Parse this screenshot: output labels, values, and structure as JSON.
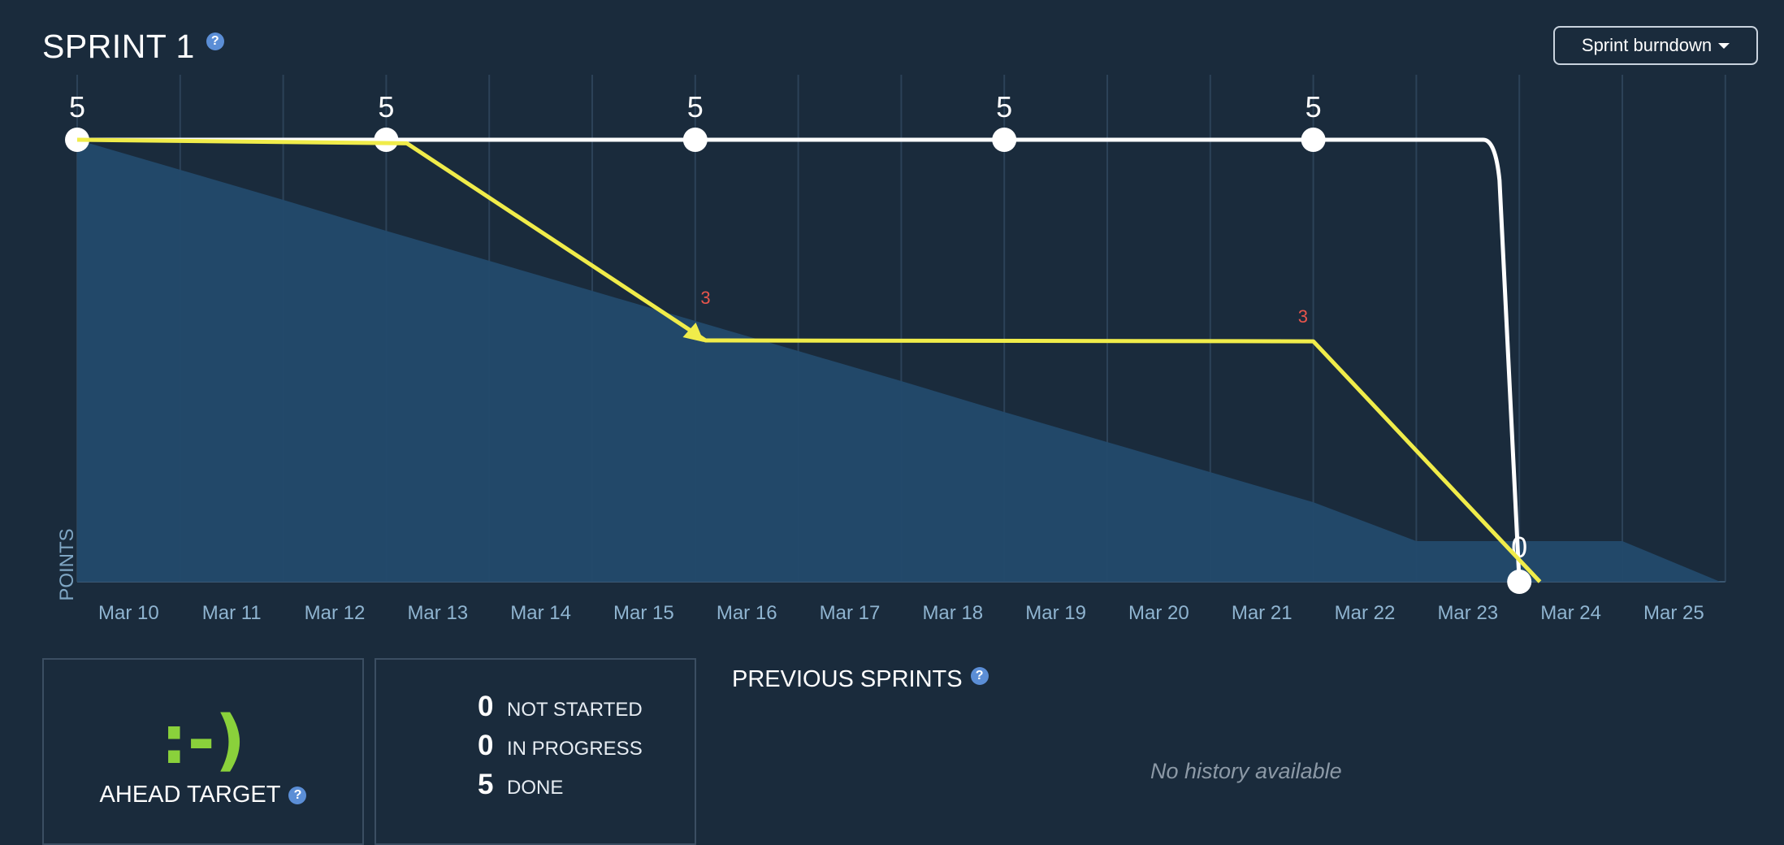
{
  "header": {
    "title": "SPRINT 1",
    "help_glyph": "?",
    "dropdown_label": "Sprint burndown"
  },
  "chart_data": {
    "type": "line",
    "ylabel": "POINTS",
    "x": [
      "Mar 10",
      "Mar 11",
      "Mar 12",
      "Mar 13",
      "Mar 14",
      "Mar 15",
      "Mar 16",
      "Mar 17",
      "Mar 18",
      "Mar 19",
      "Mar 20",
      "Mar 21",
      "Mar 22",
      "Mar 23",
      "Mar 24",
      "Mar 25"
    ],
    "ylim": [
      0,
      5
    ],
    "series": [
      {
        "role": "ideal-area",
        "color": "#234a6b",
        "points": [
          [
            0,
            5
          ],
          [
            1,
            4.66
          ],
          [
            2,
            4.32
          ],
          [
            3,
            3.97
          ],
          [
            4,
            3.63
          ],
          [
            5,
            3.29
          ],
          [
            6,
            2.95
          ],
          [
            7,
            2.61
          ],
          [
            8,
            2.27
          ],
          [
            9,
            1.92
          ],
          [
            10,
            1.58
          ],
          [
            11,
            1.24
          ],
          [
            12,
            0.9
          ],
          [
            13,
            0.46
          ],
          [
            14,
            0.46
          ],
          [
            15,
            0.46
          ],
          [
            15.95,
            0
          ]
        ]
      },
      {
        "role": "scope-line",
        "color": "#ffffff",
        "points": [
          [
            0,
            5
          ],
          [
            3,
            5
          ],
          [
            6,
            5
          ],
          [
            9,
            5
          ],
          [
            12,
            5
          ],
          [
            14,
            0
          ]
        ],
        "labels": [
          "5",
          "5",
          "5",
          "5",
          "5",
          "0"
        ]
      },
      {
        "role": "remaining-line",
        "color": "#f0ec4a",
        "points": [
          [
            0,
            5
          ],
          [
            3.2,
            4.96
          ],
          [
            6.1,
            2.73
          ],
          [
            12,
            2.72
          ],
          [
            14.2,
            0
          ]
        ],
        "labels": [
          "3",
          "3"
        ],
        "label_color": "#e8554c"
      }
    ],
    "grid": true
  },
  "target": {
    "face": ":-)",
    "label": "AHEAD TARGET",
    "color": "#8ad13b"
  },
  "status": {
    "items": [
      {
        "count": "0",
        "label": "NOT STARTED"
      },
      {
        "count": "0",
        "label": "IN PROGRESS"
      },
      {
        "count": "5",
        "label": "DONE"
      }
    ]
  },
  "previous": {
    "heading": "PREVIOUS SPRINTS",
    "empty_text": "No history available"
  }
}
